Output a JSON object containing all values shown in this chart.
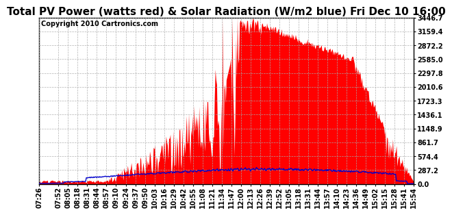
{
  "title": "Total PV Power (watts red) & Solar Radiation (W/m2 blue) Fri Dec 10 16:00",
  "copyright_text": "Copyright 2010 Cartronics.com",
  "yticks": [
    0.0,
    287.2,
    574.4,
    861.7,
    1148.9,
    1436.1,
    1723.3,
    2010.6,
    2297.8,
    2585.0,
    2872.2,
    3159.4,
    3446.7
  ],
  "ymax": 3446.7,
  "ymin": 0.0,
  "pv_color": "#ff0000",
  "solar_color": "#0000cc",
  "bg_color": "#ffffff",
  "plot_bg_color": "#ffffff",
  "grid_color": "#aaaaaa",
  "border_color": "#000000",
  "title_fontsize": 11,
  "tick_fontsize": 7,
  "copyright_fontsize": 7,
  "xtick_labels": [
    "07:26",
    "07:52",
    "08:05",
    "08:18",
    "08:31",
    "08:44",
    "08:57",
    "09:10",
    "09:24",
    "09:37",
    "09:50",
    "10:03",
    "10:16",
    "10:29",
    "10:42",
    "10:55",
    "11:08",
    "11:21",
    "11:34",
    "11:47",
    "12:00",
    "12:13",
    "12:26",
    "12:39",
    "12:52",
    "13:05",
    "13:18",
    "13:31",
    "13:44",
    "13:57",
    "14:10",
    "14:23",
    "14:36",
    "14:49",
    "15:02",
    "15:15",
    "15:28",
    "15:41",
    "15:54"
  ]
}
